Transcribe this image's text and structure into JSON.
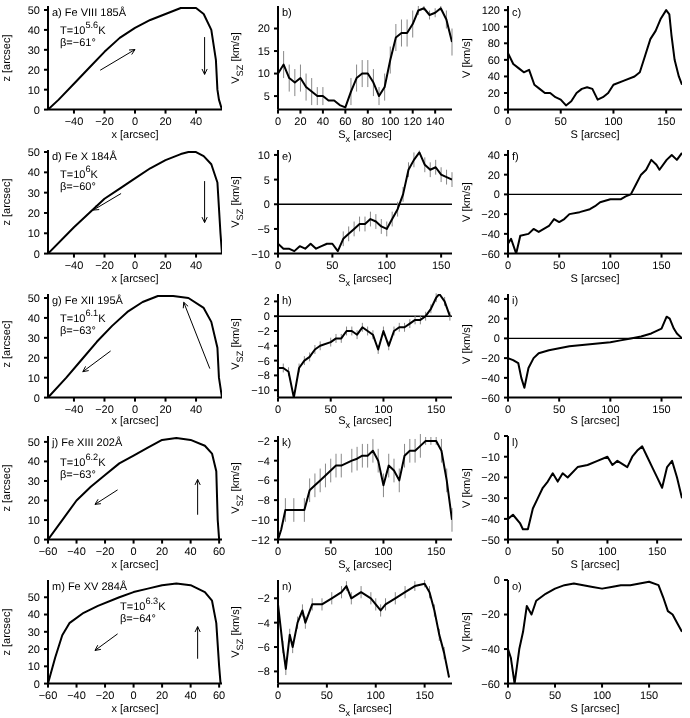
{
  "chart_data": [
    {
      "type": "line",
      "xlabel": "x [arcsec]",
      "ylabel": "z [arcsec]",
      "annotations": [
        "a) Fe VIII 185Å",
        "T=10$^{5.6}$K",
        "β=−61°"
      ],
      "xlim": [
        -57,
        57
      ],
      "xticks": [
        -40,
        -20,
        0,
        20,
        40
      ],
      "ylim": [
        0,
        52
      ],
      "yticks": [
        0,
        10,
        20,
        30,
        40,
        50
      ],
      "series": [
        {
          "color": "#000000",
          "x": [
            -57,
            -50,
            -40,
            -30,
            -20,
            -10,
            0,
            10,
            20,
            30,
            40,
            45,
            50,
            53,
            54,
            55,
            57
          ],
          "values": [
            0,
            5,
            13,
            21,
            29,
            36,
            41,
            45,
            48,
            51,
            51,
            48,
            40,
            25,
            10,
            5,
            0
          ]
        }
      ]
    },
    {
      "type": "line",
      "xlabel": "S$_{x}$ [arcsec]",
      "ylabel": "V$_{SZ}$ [km/s]",
      "annotations": [
        "b)"
      ],
      "xlim": [
        0,
        155
      ],
      "xticks": [
        0,
        20,
        40,
        60,
        80,
        100,
        120,
        140
      ],
      "ylim": [
        2,
        25
      ],
      "yticks": [
        5,
        10,
        15,
        20
      ],
      "series": [
        {
          "color": "#000000",
          "x": [
            0,
            5,
            10,
            15,
            20,
            25,
            30,
            35,
            40,
            45,
            50,
            55,
            60,
            65,
            70,
            75,
            80,
            85,
            90,
            95,
            100,
            105,
            110,
            115,
            120,
            125,
            130,
            135,
            140,
            145,
            150,
            155
          ],
          "values": [
            10,
            12,
            9,
            8,
            9,
            7,
            6,
            5,
            5,
            4,
            4,
            3,
            2.5,
            6,
            9,
            10,
            10,
            8,
            5,
            7,
            13,
            18,
            19,
            19,
            21,
            24,
            24.5,
            23,
            23.5,
            24.5,
            22,
            17
          ],
          "errors": [
            3,
            3,
            3,
            3,
            3,
            3,
            3,
            2,
            2,
            null,
            null,
            null,
            null,
            3,
            3,
            3,
            3,
            3,
            2,
            3,
            3,
            3,
            3,
            3,
            3,
            1,
            0.5,
            1,
            1,
            0.5,
            2,
            3
          ]
        }
      ]
    },
    {
      "type": "line",
      "xlabel": "S [arcsec]",
      "ylabel": "V [km/s]",
      "annotations": [
        "c)"
      ],
      "xlim": [
        0,
        165
      ],
      "xticks": [
        0,
        50,
        100,
        150
      ],
      "ylim": [
        0,
        125
      ],
      "yticks": [
        0,
        20,
        40,
        60,
        80,
        100,
        120
      ],
      "series": [
        {
          "color": "#000000",
          "x": [
            0,
            5,
            10,
            15,
            20,
            25,
            30,
            35,
            40,
            45,
            50,
            55,
            60,
            65,
            70,
            75,
            80,
            85,
            90,
            95,
            100,
            110,
            120,
            125,
            130,
            135,
            140,
            145,
            150,
            153,
            155,
            158,
            162,
            165
          ],
          "values": [
            68,
            55,
            50,
            45,
            48,
            30,
            25,
            20,
            20,
            15,
            12,
            5,
            10,
            20,
            25,
            27,
            25,
            12,
            15,
            20,
            30,
            35,
            40,
            45,
            65,
            85,
            95,
            110,
            120,
            115,
            90,
            60,
            40,
            30
          ]
        }
      ]
    },
    {
      "type": "line",
      "xlabel": "x [arcsec]",
      "ylabel": "z [arcsec]",
      "annotations": [
        "d) Fe X 184Å",
        "T=10$^{6}$K",
        "β=−60°"
      ],
      "xlim": [
        -57,
        57
      ],
      "xticks": [
        -40,
        -20,
        0,
        20,
        40
      ],
      "ylim": [
        0,
        51
      ],
      "yticks": [
        0,
        10,
        20,
        30,
        40,
        50
      ],
      "series": [
        {
          "color": "#000000",
          "x": [
            -57,
            -40,
            -30,
            -20,
            -10,
            0,
            10,
            20,
            30,
            35,
            40,
            45,
            50,
            54,
            56,
            57
          ],
          "values": [
            0,
            13,
            20,
            27,
            32,
            37,
            42,
            46,
            49,
            50,
            50,
            48,
            44,
            35,
            10,
            0
          ]
        }
      ]
    },
    {
      "type": "line",
      "xlabel": "S$_{x}$ [arcsec]",
      "ylabel": "V$_{SZ}$ [km/s]",
      "annotations": [
        "e)"
      ],
      "xlim": [
        0,
        160
      ],
      "xticks": [
        0,
        50,
        100,
        150
      ],
      "ylim": [
        -10,
        11
      ],
      "yticks": [
        -10,
        -5,
        0,
        5,
        10
      ],
      "ref_lines": [
        {
          "axis": "y",
          "value": 0,
          "color": "#000000"
        }
      ],
      "series": [
        {
          "color": "#000000",
          "x": [
            0,
            5,
            10,
            15,
            20,
            25,
            30,
            35,
            40,
            45,
            50,
            55,
            60,
            65,
            70,
            75,
            80,
            85,
            90,
            95,
            100,
            105,
            110,
            115,
            120,
            125,
            130,
            135,
            140,
            145,
            150,
            155,
            160
          ],
          "values": [
            -8,
            -9,
            -9,
            -9.5,
            -8.5,
            -9,
            -8,
            -9,
            -8.5,
            -8,
            -8,
            -9.5,
            -7,
            -6,
            -5,
            -4,
            -4,
            -3,
            -3.5,
            -4.5,
            -5,
            -3,
            -1,
            2,
            7,
            9,
            10.5,
            8,
            7,
            7.5,
            6,
            5.5,
            5
          ],
          "errors": [
            1.5,
            null,
            null,
            null,
            null,
            null,
            null,
            null,
            null,
            null,
            null,
            null,
            1.5,
            1.5,
            1.5,
            1.5,
            1.5,
            1.5,
            1.5,
            1.5,
            1.5,
            1.5,
            1.5,
            1.5,
            1.5,
            1.5,
            0.4,
            1.5,
            1.5,
            1.5,
            1.5,
            1.5,
            1.5
          ]
        }
      ]
    },
    {
      "type": "line",
      "xlabel": "S [arcsec]",
      "ylabel": "V [km/s]",
      "annotations": [
        "f)"
      ],
      "xlim": [
        0,
        170
      ],
      "xticks": [
        0,
        50,
        100,
        150
      ],
      "ylim": [
        -60,
        45
      ],
      "yticks": [
        -60,
        -40,
        -20,
        0,
        20,
        40
      ],
      "ref_lines": [
        {
          "axis": "y",
          "value": 0,
          "color": "#000000"
        }
      ],
      "series": [
        {
          "color": "#000000",
          "x": [
            0,
            3,
            8,
            12,
            20,
            25,
            30,
            40,
            45,
            50,
            55,
            60,
            70,
            80,
            85,
            90,
            100,
            110,
            115,
            120,
            125,
            130,
            135,
            140,
            145,
            148,
            155,
            160,
            165,
            170
          ],
          "values": [
            -50,
            -45,
            -60,
            -42,
            -40,
            -35,
            -38,
            -32,
            -25,
            -28,
            -25,
            -20,
            -18,
            -15,
            -12,
            -8,
            -5,
            -5,
            -2,
            0,
            10,
            20,
            25,
            35,
            30,
            25,
            35,
            40,
            35,
            42
          ]
        }
      ]
    },
    {
      "type": "line",
      "xlabel": "x [arcsec]",
      "ylabel": "z [arcsec]",
      "annotations": [
        "g) Fe XII 195Å",
        "T=10$^{6.1}$K",
        "β=−63°"
      ],
      "xlim": [
        -57,
        57
      ],
      "xticks": [
        -40,
        -20,
        0,
        20,
        40
      ],
      "ylim": [
        0,
        52
      ],
      "yticks": [
        0,
        10,
        20,
        30,
        40,
        50
      ],
      "series": [
        {
          "color": "#000000",
          "x": [
            -57,
            -45,
            -35,
            -25,
            -15,
            -5,
            5,
            15,
            25,
            35,
            45,
            50,
            54,
            55,
            57
          ],
          "values": [
            0,
            10,
            19,
            28,
            36,
            43,
            48,
            51,
            51,
            50,
            45,
            38,
            25,
            10,
            0
          ]
        }
      ]
    },
    {
      "type": "line",
      "xlabel": "S$_{x}$ [arcsec]",
      "ylabel": "V$_{SZ}$ [km/s]",
      "annotations": [
        "h)"
      ],
      "xlim": [
        0,
        165
      ],
      "xticks": [
        0,
        50,
        100,
        150
      ],
      "ylim": [
        -11,
        3
      ],
      "yticks": [
        -10,
        -8,
        -6,
        -4,
        -2,
        0,
        2
      ],
      "ref_lines": [
        {
          "axis": "y",
          "value": 0,
          "color": "#000000"
        }
      ],
      "series": [
        {
          "color": "#000000",
          "x": [
            0,
            5,
            10,
            15,
            20,
            25,
            30,
            35,
            40,
            50,
            55,
            60,
            65,
            70,
            75,
            80,
            85,
            90,
            95,
            100,
            105,
            110,
            115,
            120,
            125,
            130,
            135,
            140,
            145,
            150,
            153,
            158,
            163
          ],
          "values": [
            -7,
            -7,
            -7.5,
            -11,
            -7,
            -6,
            -5.5,
            -4.5,
            -4,
            -3.5,
            -3,
            -3,
            -2,
            -2,
            -2.5,
            -1.5,
            -2,
            -2.5,
            -4.5,
            -2,
            -4,
            -2,
            -1.5,
            -1.5,
            -1,
            -0.5,
            -0.5,
            0,
            1,
            2.5,
            3,
            2,
            0
          ],
          "errors": [
            0.6,
            0.6,
            0.6,
            null,
            0.6,
            0.6,
            0.6,
            0.6,
            0.6,
            0.6,
            0.6,
            0.6,
            0.6,
            0.6,
            0.6,
            0.6,
            0.6,
            0.6,
            0.6,
            0.6,
            0.6,
            0.6,
            0.6,
            0.6,
            0.6,
            0.6,
            0.6,
            0.6,
            0.6,
            0.6,
            null,
            0.6,
            0.6
          ]
        }
      ]
    },
    {
      "type": "line",
      "xlabel": "S [arcsec]",
      "ylabel": "V [km/s]",
      "annotations": [
        "i)"
      ],
      "xlim": [
        0,
        170
      ],
      "xticks": [
        0,
        50,
        100,
        150
      ],
      "ylim": [
        -60,
        45
      ],
      "yticks": [
        -60,
        -40,
        -20,
        0,
        20,
        40
      ],
      "ref_lines": [
        {
          "axis": "y",
          "value": 0,
          "color": "#000000"
        }
      ],
      "series": [
        {
          "color": "#000000",
          "x": [
            0,
            5,
            10,
            13,
            16,
            20,
            25,
            30,
            40,
            50,
            60,
            70,
            80,
            90,
            100,
            110,
            120,
            130,
            140,
            150,
            155,
            158,
            162,
            165,
            170
          ],
          "values": [
            -20,
            -22,
            -25,
            -40,
            -50,
            -30,
            -20,
            -15,
            -12,
            -10,
            -8,
            -7,
            -6,
            -5,
            -4,
            -2,
            0,
            2,
            5,
            10,
            22,
            20,
            10,
            5,
            0
          ]
        }
      ]
    },
    {
      "type": "line",
      "xlabel": "x [arcsec]",
      "ylabel": "z [arcsec]",
      "annotations": [
        "j) Fe XIII 202Å",
        "T=10$^{6.2}$K",
        "β=−63°"
      ],
      "xlim": [
        -60,
        62
      ],
      "xticks": [
        -60,
        -40,
        -20,
        0,
        20,
        40,
        60
      ],
      "ylim": [
        0,
        53
      ],
      "yticks": [
        0,
        10,
        20,
        30,
        40,
        50
      ],
      "series": [
        {
          "color": "#000000",
          "x": [
            -60,
            -50,
            -40,
            -30,
            -20,
            -10,
            0,
            10,
            20,
            30,
            40,
            50,
            55,
            58,
            59,
            60
          ],
          "values": [
            0,
            10,
            20,
            27,
            33,
            39,
            43,
            47,
            51,
            52,
            51,
            48,
            44,
            35,
            10,
            0
          ]
        }
      ]
    },
    {
      "type": "line",
      "xlabel": "S$_{x}$ [arcsec]",
      "ylabel": "V$_{SZ}$ [km/s]",
      "annotations": [
        "k)"
      ],
      "xlim": [
        0,
        165
      ],
      "xticks": [
        0,
        50,
        100,
        150
      ],
      "ylim": [
        -12,
        -1.5
      ],
      "yticks": [
        -12,
        -10,
        -8,
        -6,
        -4,
        -2
      ],
      "series": [
        {
          "color": "#000000",
          "x": [
            0,
            3,
            7,
            15,
            25,
            30,
            35,
            40,
            45,
            50,
            55,
            60,
            70,
            75,
            80,
            85,
            90,
            95,
            100,
            105,
            110,
            115,
            120,
            125,
            130,
            135,
            140,
            145,
            150,
            155,
            160,
            165
          ],
          "values": [
            -12,
            -11,
            -9,
            -9,
            -9,
            -7,
            -6.5,
            -6,
            -5.5,
            -5,
            -4.5,
            -4.5,
            -4,
            -3.8,
            -3.5,
            -3.5,
            -3,
            -4,
            -6.5,
            -4.5,
            -5,
            -6,
            -3.5,
            -3,
            -3,
            -2.5,
            -2,
            -2,
            -2,
            -3,
            -6,
            -10
          ],
          "errors": [
            null,
            null,
            1.2,
            1.2,
            1.2,
            1.2,
            1.2,
            1.2,
            1.2,
            1.2,
            1.2,
            1.2,
            1.2,
            1.2,
            1.2,
            1.2,
            1.2,
            1.2,
            1.2,
            1.2,
            1.2,
            1.2,
            1.2,
            1.2,
            1.2,
            1.2,
            0.4,
            0.4,
            0.4,
            1.2,
            1.2,
            1.2
          ]
        }
      ]
    },
    {
      "type": "line",
      "xlabel": "S [arcsec]",
      "ylabel": "V [km/s]",
      "annotations": [
        "l)"
      ],
      "xlim": [
        0,
        175
      ],
      "xticks": [
        0,
        50,
        100,
        150
      ],
      "ylim": [
        -50,
        0
      ],
      "yticks": [
        -50,
        -40,
        -30,
        -20,
        -10,
        0
      ],
      "series": [
        {
          "color": "#000000",
          "x": [
            0,
            5,
            12,
            15,
            20,
            25,
            30,
            35,
            40,
            45,
            50,
            55,
            60,
            70,
            80,
            90,
            100,
            105,
            110,
            120,
            125,
            130,
            135,
            140,
            145,
            150,
            155,
            160,
            165,
            170,
            175
          ],
          "values": [
            -40,
            -38,
            -42,
            -45,
            -45,
            -35,
            -30,
            -25,
            -22,
            -18,
            -22,
            -18,
            -20,
            -15,
            -14,
            -12,
            -10,
            -14,
            -12,
            -15,
            -10,
            -7,
            -5,
            -10,
            -15,
            -20,
            -25,
            -15,
            -12,
            -20,
            -30
          ]
        }
      ]
    },
    {
      "type": "line",
      "xlabel": "x [arcsec]",
      "ylabel": "z [arcsec]",
      "annotations": [
        "m) Fe XV 284Å",
        "T=10$^{6.3}$K",
        "β=−64°"
      ],
      "xlim": [
        -60,
        62
      ],
      "xticks": [
        -60,
        -40,
        -20,
        0,
        20,
        40,
        60
      ],
      "ylim": [
        0,
        60
      ],
      "yticks": [
        0,
        10,
        20,
        30,
        40,
        50
      ],
      "series": [
        {
          "color": "#000000",
          "x": [
            -60,
            -55,
            -50,
            -45,
            -35,
            -25,
            -10,
            0,
            10,
            20,
            30,
            40,
            50,
            55,
            58,
            60,
            61
          ],
          "values": [
            0,
            15,
            28,
            35,
            41,
            45,
            50,
            53,
            55,
            57,
            58,
            57,
            53,
            48,
            35,
            10,
            0
          ]
        }
      ]
    },
    {
      "type": "line",
      "xlabel": "S$_{x}$ [arcsec]",
      "ylabel": "V$_{SZ}$ [km/s]",
      "annotations": [
        "n)"
      ],
      "xlim": [
        0,
        178
      ],
      "xticks": [
        0,
        50,
        100,
        150
      ],
      "ylim": [
        -9,
        -0.5
      ],
      "yticks": [
        -8,
        -6,
        -4,
        -2
      ],
      "series": [
        {
          "color": "#000000",
          "x": [
            0,
            5,
            8,
            12,
            15,
            20,
            25,
            28,
            35,
            45,
            55,
            65,
            70,
            75,
            85,
            95,
            100,
            105,
            110,
            120,
            130,
            140,
            150,
            155,
            160,
            165,
            170,
            175
          ],
          "values": [
            -2.5,
            -6,
            -7.8,
            -5,
            -6,
            -4,
            -3,
            -4,
            -2.5,
            -2.5,
            -2,
            -1.5,
            -1,
            -2,
            -1.5,
            -2,
            -2.5,
            -3,
            -2.5,
            -2,
            -1.5,
            -1,
            -0.8,
            -1.5,
            -3,
            -5,
            -6.5,
            -8.5
          ],
          "errors": [
            0.5,
            0.5,
            0.5,
            0.5,
            0.5,
            0.5,
            0.5,
            0.5,
            0.5,
            0.5,
            0.5,
            0.5,
            0.4,
            0.5,
            0.5,
            0.5,
            0.5,
            0.5,
            0.5,
            0.5,
            0.5,
            0.4,
            0.3,
            0.5,
            0.5,
            0.5,
            0.5,
            null
          ]
        }
      ]
    },
    {
      "type": "line",
      "xlabel": "S [arcsec]",
      "ylabel": "V [km/s]",
      "annotations": [
        "o)"
      ],
      "xlim": [
        0,
        185
      ],
      "xticks": [
        0,
        50,
        100,
        150
      ],
      "ylim": [
        -60,
        0
      ],
      "yticks": [
        -60,
        -40,
        -20,
        0
      ],
      "series": [
        {
          "color": "#000000",
          "x": [
            0,
            3,
            7,
            12,
            16,
            20,
            25,
            30,
            40,
            50,
            60,
            70,
            80,
            90,
            100,
            110,
            120,
            130,
            140,
            150,
            160,
            165,
            170,
            175,
            180,
            185
          ],
          "values": [
            -40,
            -45,
            -60,
            -40,
            -30,
            -15,
            -20,
            -12,
            -8,
            -5,
            -3,
            -2,
            -3,
            -4,
            -5,
            -4,
            -3,
            -3,
            -2,
            -1,
            -3,
            -10,
            -18,
            -20,
            -25,
            -30
          ]
        }
      ]
    }
  ]
}
